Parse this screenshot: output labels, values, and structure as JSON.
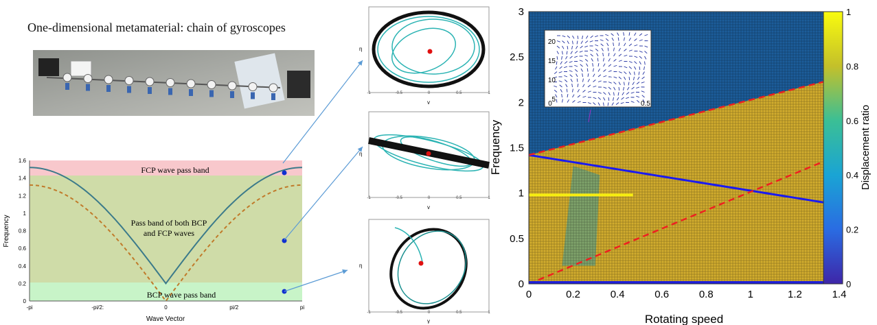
{
  "title": "One-dimensional metamaterial: chain of gyroscopes",
  "photo_icon": "gyroscope-chain-photo",
  "dispersion": {
    "ylabel": "Frequency",
    "xlabel": "Wave Vector",
    "xticks": [
      "-pi",
      "-pi/2:",
      "0",
      "pi/2",
      "pi"
    ],
    "yticks": [
      "0",
      "0.2",
      "0.4",
      "0.6",
      "0.8",
      "1",
      "1.2",
      "1.4",
      "1.6"
    ],
    "band_fcp": "FCP wave pass band",
    "band_both_1": "Pass band of both BCP",
    "band_both_2": "and FCP waves",
    "band_bcp": "BCP wave pass band",
    "colors": {
      "fcp": "#f8c8cc",
      "both": "#cfdca8",
      "bcp": "#c8f4c8",
      "solid": "#3b7a8a",
      "dashed": "#c07a2a",
      "marker": "#1030d0"
    }
  },
  "orbits": [
    {
      "xlabel": "γ",
      "ylabel": "η",
      "xticks": [
        "-1",
        "-0.5",
        "0",
        "0.5",
        "1"
      ]
    },
    {
      "xlabel": "γ",
      "ylabel": "η",
      "xticks": [
        "-1",
        "-0.5",
        "0",
        "0.5",
        "1"
      ]
    },
    {
      "xlabel": "γ",
      "ylabel": "η",
      "xticks": [
        "-1",
        "-0.5",
        "0",
        "0.5",
        "1"
      ]
    }
  ],
  "heatmap": {
    "ylabel": "Frequency",
    "xlabel": "Rotating speed",
    "xticks": [
      "0",
      "0.2",
      "0.4",
      "0.6",
      "0.8",
      "1",
      "1.2",
      "1.4"
    ],
    "yticks": [
      "0",
      "0.5",
      "1",
      "1.5",
      "2",
      "2.5",
      "3"
    ],
    "colorbar_label": "Displacement ratio",
    "colorbar_ticks": [
      "0",
      "0.2",
      "0.4",
      "0.6",
      "0.8",
      "1"
    ],
    "inset_yticks": [
      "5",
      "10",
      "15",
      "20"
    ],
    "inset_xticks": [
      "0",
      "0.5"
    ]
  },
  "chart_data": {
    "type": "heatmap",
    "xlabel": "Rotating speed",
    "ylabel": "Frequency",
    "xlim": [
      0,
      1.4
    ],
    "ylim": [
      0,
      3
    ],
    "colorbar": {
      "label": "Displacement ratio",
      "range": [
        0,
        1
      ]
    },
    "lines": [
      {
        "style": "solid",
        "color": "blue",
        "x": [
          0,
          1.4
        ],
        "y": [
          1.42,
          0.87
        ]
      },
      {
        "style": "dashed",
        "color": "red",
        "x": [
          0,
          1.4
        ],
        "y": [
          1.42,
          2.27
        ]
      },
      {
        "style": "dashed",
        "color": "red",
        "x": [
          0,
          1.4
        ],
        "y": [
          0,
          1.42
        ]
      },
      {
        "style": "solid",
        "color": "yellow",
        "x": [
          0,
          0.47
        ],
        "y": [
          0.98,
          0.98
        ]
      }
    ]
  }
}
